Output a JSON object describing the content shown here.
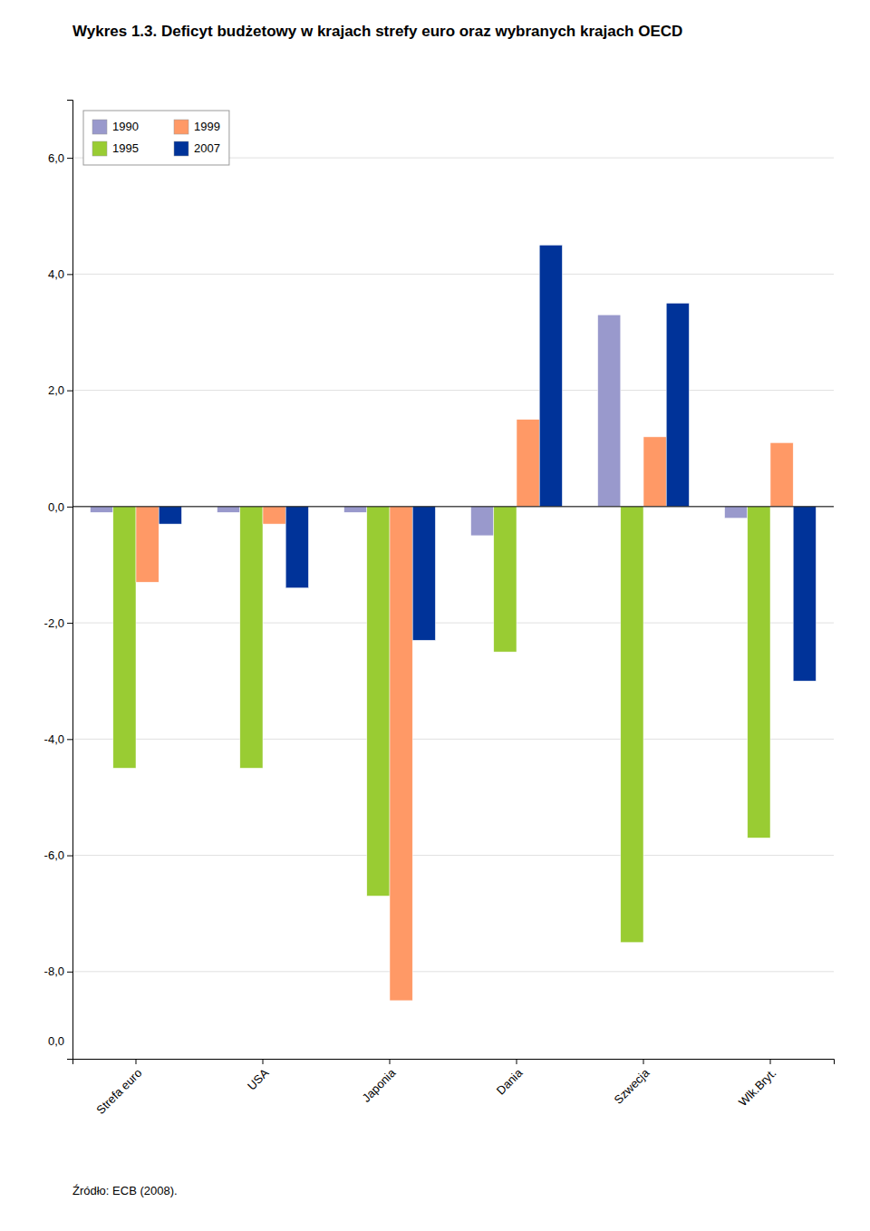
{
  "chart_data": {
    "type": "bar",
    "title": "Wykres 1.3. Deficyt budżetowy w krajach strefy euro oraz wybranych krajach OECD",
    "categories": [
      "Strefa euro",
      "USA",
      "Japonia",
      "Dania",
      "Szwecja",
      "Wlk.Bryt."
    ],
    "series": [
      {
        "name": "1990",
        "color": "#9999CC",
        "values": [
          -0.1,
          -0.1,
          -0.1,
          -0.5,
          3.3,
          -0.2
        ]
      },
      {
        "name": "1995",
        "color": "#99CC33",
        "values": [
          -4.5,
          -4.5,
          -6.7,
          -2.5,
          -7.5,
          -5.7
        ]
      },
      {
        "name": "1999",
        "color": "#FF9966",
        "values": [
          -1.3,
          -0.3,
          -8.5,
          1.5,
          1.2,
          1.1
        ]
      },
      {
        "name": "2007",
        "color": "#003399",
        "values": [
          -0.3,
          -1.4,
          -2.3,
          4.5,
          3.5,
          -3.0
        ]
      }
    ],
    "ylim": [
      -9.5,
      7.0
    ],
    "yticks": [
      {
        "value": 6.0,
        "label": "6,0"
      },
      {
        "value": 4.0,
        "label": "4,0"
      },
      {
        "value": 2.0,
        "label": "2,0"
      },
      {
        "value": 0.0,
        "label": "0,0"
      },
      {
        "value": -2.0,
        "label": "-2,0"
      },
      {
        "value": -4.0,
        "label": "-4,0"
      },
      {
        "value": -6.0,
        "label": "-6,0"
      },
      {
        "value": -8.0,
        "label": "-8,0"
      }
    ],
    "annotations": [
      {
        "text": "0,0",
        "y": -9.2
      },
      {
        "text": "Źródło: ECB (2008)."
      }
    ],
    "grid": true,
    "legend": "upper left"
  }
}
